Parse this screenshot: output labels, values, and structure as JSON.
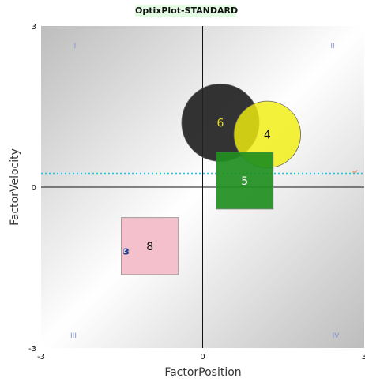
{
  "chart_data": {
    "type": "scatter",
    "title": "OptixPlot-STANDARD",
    "xlabel": "FactorPosition",
    "ylabel": "FactorVelocity",
    "xlim": [
      -3,
      3
    ],
    "ylim": [
      -3,
      3
    ],
    "x_ticks": [
      "-3",
      "0",
      "3"
    ],
    "y_ticks": [
      "-3",
      "0",
      "3"
    ],
    "quadrant_labels": [
      "I",
      "II",
      "III",
      "IV"
    ],
    "reference_line": {
      "y": 0.25,
      "label": "ref",
      "color": "#22c8d8",
      "style": "dotted"
    },
    "points": [
      {
        "label": "6",
        "shape": "circle",
        "x": 0.33,
        "y": 1.2,
        "size": 0.72,
        "fill": "#222222",
        "fill_opacity": 0.92,
        "text_color": "#e8dc20"
      },
      {
        "label": "4",
        "shape": "circle",
        "x": 1.2,
        "y": 0.98,
        "size": 0.62,
        "fill": "#f2ee10",
        "fill_opacity": 0.82,
        "text_color": "#111111"
      },
      {
        "label": "5",
        "shape": "square",
        "x": 0.78,
        "y": 0.12,
        "size": 1.06,
        "fill": "#1f8f1f",
        "fill_opacity": 0.92,
        "text_color": "#ffffff"
      },
      {
        "label": "8",
        "shape": "square",
        "x": -0.98,
        "y": -1.1,
        "size": 1.06,
        "fill": "#f4c0cc",
        "fill_opacity": 1,
        "text_color": "#111111"
      },
      {
        "label": "3",
        "shape": "square",
        "x": -1.42,
        "y": -1.2,
        "size": 0.09,
        "fill": "#ccd4f0",
        "fill_opacity": 1,
        "text_color": "#223388"
      }
    ]
  }
}
